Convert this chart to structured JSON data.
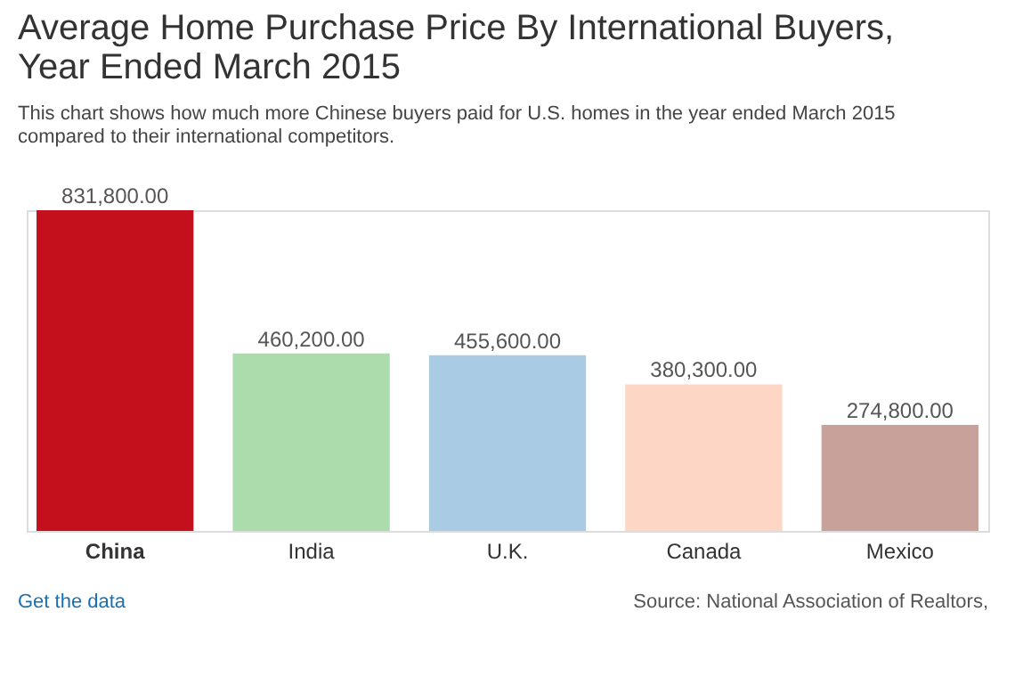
{
  "chart_data": {
    "type": "bar",
    "title": "Average Home Purchase Price By International Buyers, Year Ended March 2015",
    "subtitle": "This chart shows how much more Chinese buyers paid for U.S. homes in the year ended March 2015 compared to their international competitors.",
    "categories": [
      "China",
      "India",
      "U.K.",
      "Canada",
      "Mexico"
    ],
    "values": [
      831800,
      460200,
      455600,
      380300,
      274800
    ],
    "value_labels": [
      "831,800.00",
      "460,200.00",
      "455,600.00",
      "380,300.00",
      "274,800.00"
    ],
    "colors": [
      "#c4101c",
      "#acdcac",
      "#a9cce4",
      "#fdd6c6",
      "#c9a19b"
    ],
    "annotations": [
      "Get the data",
      "Source: National Association of Realtors,"
    ]
  }
}
